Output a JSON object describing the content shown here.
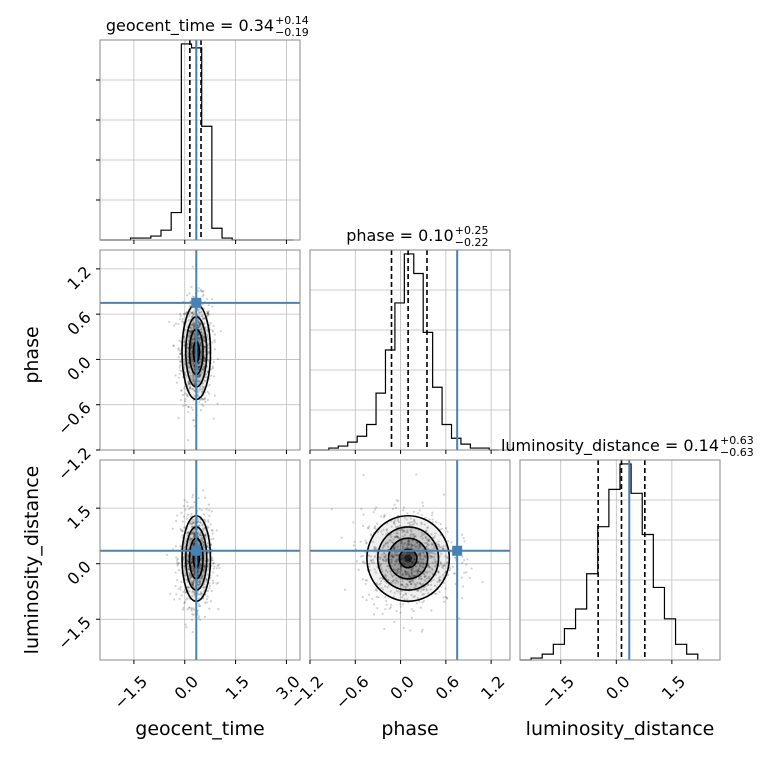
{
  "chart_data": {
    "type": "corner",
    "parameters": [
      "geocent_time",
      "phase",
      "luminosity_distance"
    ],
    "truths": {
      "geocent_time": 0.34,
      "phase": 0.75,
      "luminosity_distance": 0.35
    },
    "truth_color": "#4682b4",
    "grid": true,
    "titles": [
      {
        "param": "geocent_time",
        "text": "geocent_time = 0.34",
        "plus": "+0.14",
        "minus": "−0.19"
      },
      {
        "param": "phase",
        "text": "phase = 0.10",
        "plus": "+0.25",
        "minus": "−0.22"
      },
      {
        "param": "luminosity_distance",
        "text": "luminosity_distance = 0.14",
        "plus": "+0.63",
        "minus": "−0.63"
      }
    ],
    "axes": {
      "geocent_time": {
        "range": [
          -2.5,
          3.4
        ],
        "ticks": [
          -1.5,
          0.0,
          1.5,
          3.0
        ],
        "tick_labels": [
          "−1.5",
          "0.0",
          "1.5",
          "3.0"
        ]
      },
      "phase": {
        "range": [
          -1.2,
          1.45
        ],
        "ticks": [
          -1.2,
          -0.6,
          0.0,
          0.6,
          1.2
        ],
        "tick_labels": [
          "−1.2",
          "−0.6",
          "0.0",
          "0.6",
          "1.2"
        ]
      },
      "luminosity_distance": {
        "range": [
          -2.6,
          2.8
        ],
        "ticks": [
          -1.5,
          0.0,
          1.5
        ],
        "tick_labels": [
          "−1.5",
          "0.0",
          "1.5"
        ]
      }
    },
    "histograms": [
      {
        "param": "geocent_time",
        "bins": [
          -2.5,
          -2.2,
          -1.9,
          -1.6,
          -1.3,
          -1.0,
          -0.7,
          -0.4,
          -0.1,
          0.2,
          0.5,
          0.8,
          1.1,
          1.4,
          1.7,
          2.0,
          2.3,
          2.6,
          2.9,
          3.2
        ],
        "counts": [
          0,
          0,
          0,
          1,
          1,
          2,
          5,
          14,
          100,
          98,
          58,
          6,
          1,
          0,
          0,
          0,
          0,
          0,
          0
        ],
        "quantiles": [
          0.15,
          0.34,
          0.48
        ]
      },
      {
        "param": "phase",
        "bins": [
          -1.2,
          -1.075,
          -0.95,
          -0.825,
          -0.7,
          -0.575,
          -0.45,
          -0.325,
          -0.2,
          -0.075,
          0.05,
          0.175,
          0.3,
          0.425,
          0.55,
          0.675,
          0.8,
          0.925,
          1.05,
          1.175,
          1.3
        ],
        "counts": [
          0,
          0,
          1,
          2,
          4,
          7,
          13,
          29,
          51,
          75,
          100,
          90,
          60,
          32,
          13,
          6,
          3,
          1,
          1,
          0
        ],
        "quantiles": [
          -0.12,
          0.1,
          0.35
        ]
      },
      {
        "param": "luminosity_distance",
        "bins": [
          -2.6,
          -2.3,
          -2.0,
          -1.7,
          -1.4,
          -1.1,
          -0.8,
          -0.5,
          -0.2,
          0.1,
          0.4,
          0.7,
          1.0,
          1.3,
          1.6,
          1.9,
          2.2
        ],
        "counts": [
          0,
          1,
          3,
          8,
          16,
          26,
          44,
          68,
          87,
          100,
          85,
          64,
          37,
          21,
          8,
          3
        ],
        "quantiles": [
          -0.49,
          0.14,
          0.77
        ]
      }
    ],
    "scatter_panels": [
      {
        "x": "geocent_time",
        "y": "phase",
        "mean": [
          0.34,
          0.1
        ],
        "sd": [
          0.2,
          0.3
        ],
        "contour_sd_multiples": [
          0.45,
          1.0,
          1.55,
          2.1
        ]
      },
      {
        "x": "geocent_time",
        "y": "luminosity_distance",
        "mean": [
          0.34,
          0.14
        ],
        "sd": [
          0.2,
          0.55
        ],
        "contour_sd_multiples": [
          0.45,
          1.0,
          1.55,
          2.1
        ]
      },
      {
        "x": "phase",
        "y": "luminosity_distance",
        "mean": [
          0.1,
          0.14
        ],
        "sd": [
          0.26,
          0.55
        ],
        "contour_sd_multiples": [
          0.45,
          1.0,
          1.55,
          2.1
        ]
      }
    ],
    "axis_labels": [
      "geocent_time",
      "phase",
      "luminosity_distance"
    ]
  }
}
